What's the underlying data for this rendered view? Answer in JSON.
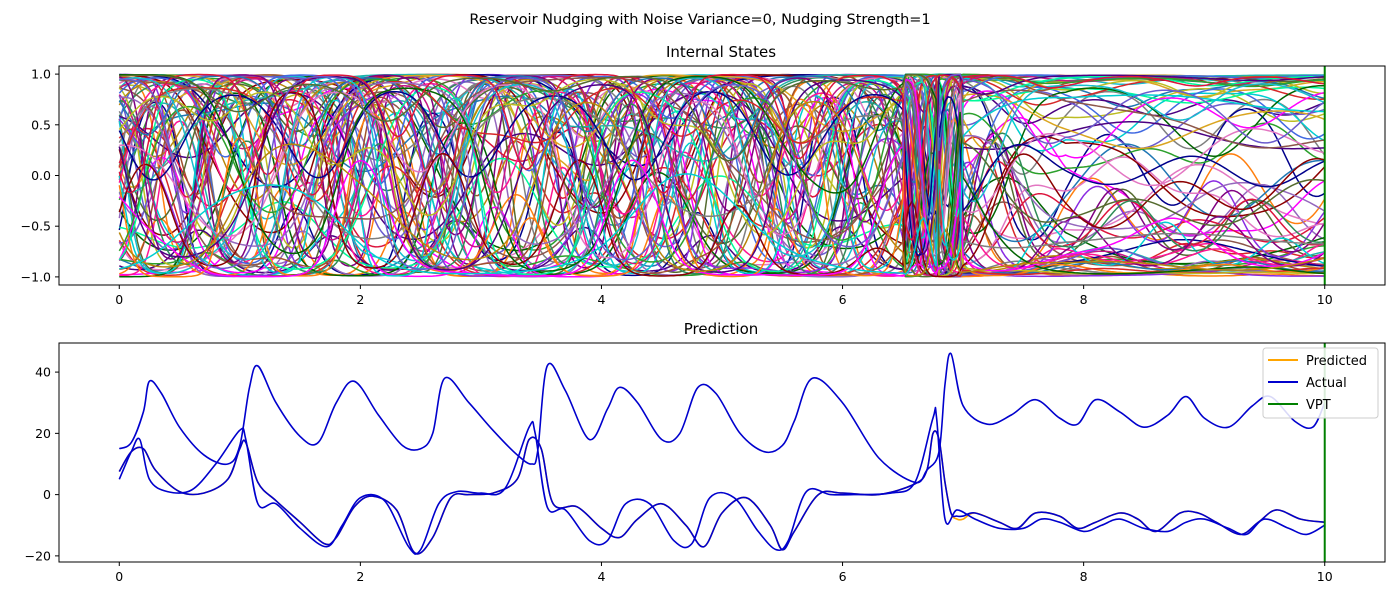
{
  "figure": {
    "suptitle": "Reservoir Nudging with Noise Variance=0, Nudging Strength=1"
  },
  "chart_data": [
    {
      "type": "line",
      "title": "Internal States",
      "xlim": [
        -0.5,
        10.5
      ],
      "ylim": [
        -1.08,
        1.08
      ],
      "xticks": [
        0,
        2,
        4,
        6,
        8,
        10
      ],
      "yticks": [
        -1.0,
        -0.5,
        0.0,
        0.5,
        1.0
      ],
      "ytick_labels": [
        "−1.0",
        "−0.5",
        "0.0",
        "0.5",
        "1.0"
      ],
      "grid": false,
      "vline_x": 10,
      "vline_color": "#008000",
      "series_count": 80,
      "note_series": "80 internal reservoir state trajectories, each bounded in [-1, 1]; multicolored, unlabeled",
      "palette": [
        "#1f77b4",
        "#ff7f0e",
        "#2ca02c",
        "#d62728",
        "#9467bd",
        "#8c564b",
        "#e377c2",
        "#7f7f7f",
        "#bcbd22",
        "#17becf",
        "#00008b",
        "#8b0000",
        "#006400",
        "#ff00ff",
        "#4b0082",
        "#b8860b",
        "#00ced1",
        "#dc143c",
        "#6a5acd",
        "#556b2f",
        "#ff1493",
        "#2e8b57",
        "#8a2be2",
        "#a0522d",
        "#20b2aa",
        "#c71585",
        "#4169e1",
        "#daa520",
        "#00fa9a",
        "#800080"
      ]
    },
    {
      "type": "line",
      "title": "Prediction",
      "xlim": [
        -0.5,
        10.5
      ],
      "ylim": [
        -22,
        49.5
      ],
      "xticks": [
        0,
        2,
        4,
        6,
        8,
        10
      ],
      "yticks": [
        -20,
        0,
        20,
        40
      ],
      "ytick_labels": [
        "−20",
        "0",
        "20",
        "40"
      ],
      "grid": false,
      "legend_position": "top-right",
      "series": [
        {
          "name": "Predicted",
          "color": "#ffa500",
          "component": "x",
          "x": [
            0,
            0.1,
            0.2,
            0.3,
            0.5,
            0.7,
            0.9,
            1.0,
            1.05,
            1.15,
            1.3,
            1.5,
            1.7,
            1.8,
            1.95,
            2.1,
            2.3,
            2.45,
            2.6,
            2.75,
            2.9,
            3.1,
            3.3,
            3.4,
            3.5,
            3.6,
            3.8,
            4.0,
            4.15,
            4.3,
            4.5,
            4.7,
            4.85,
            5.0,
            5.2,
            5.4,
            5.5,
            5.6,
            5.8,
            6.0,
            6.3,
            6.6,
            6.7,
            6.75,
            6.8,
            6.85,
            6.9,
            6.95,
            7.0,
            7.1,
            7.3,
            7.45,
            7.6,
            7.8,
            7.95,
            8.1,
            8.3,
            8.45,
            8.6,
            8.8,
            8.95,
            9.1,
            9.3,
            9.45,
            9.6,
            9.8,
            10.0
          ],
          "values": [
            7.5,
            14,
            15,
            8,
            1,
            0.5,
            5,
            15,
            17,
            4,
            -2,
            -9,
            -16,
            -14,
            -4,
            -0.5,
            -5,
            -19,
            -14,
            -1,
            0,
            0.5,
            5,
            18,
            15,
            -3,
            -4,
            -11,
            -14,
            -8,
            -3,
            -10,
            -17,
            -6,
            -1,
            -10,
            -18,
            -12,
            0,
            0.5,
            0,
            3.5,
            8,
            20,
            18,
            4,
            -6,
            -8,
            -8,
            -6,
            -9,
            -11,
            -6,
            -7,
            -11,
            -9,
            -6,
            -8,
            -12,
            -6,
            -6,
            -9,
            -13,
            -9,
            -5,
            -8,
            -9
          ]
        },
        {
          "name": "Actual",
          "color": "#0000cd",
          "components": [
            {
              "component": "x",
              "x": [
                0,
                0.1,
                0.2,
                0.3,
                0.5,
                0.7,
                0.9,
                1.0,
                1.05,
                1.15,
                1.3,
                1.5,
                1.7,
                1.8,
                1.95,
                2.1,
                2.3,
                2.45,
                2.6,
                2.75,
                2.9,
                3.1,
                3.3,
                3.4,
                3.5,
                3.6,
                3.8,
                4.0,
                4.15,
                4.3,
                4.5,
                4.7,
                4.85,
                5.0,
                5.2,
                5.4,
                5.5,
                5.6,
                5.8,
                6.0,
                6.3,
                6.6,
                6.7,
                6.75,
                6.8,
                6.85,
                6.9,
                6.95,
                7.0,
                7.1,
                7.3,
                7.45,
                7.6,
                7.8,
                7.95,
                8.1,
                8.3,
                8.45,
                8.6,
                8.8,
                8.95,
                9.1,
                9.3,
                9.45,
                9.6,
                9.8,
                10.0
              ],
              "values": [
                7.5,
                14,
                15,
                8,
                1,
                0.5,
                5,
                15,
                17,
                4,
                -2,
                -9,
                -16,
                -14,
                -4,
                -0.5,
                -5,
                -19,
                -14,
                -1,
                0,
                0.5,
                5,
                18,
                15,
                -3,
                -4,
                -11,
                -14,
                -8,
                -3,
                -10,
                -17,
                -6,
                -1,
                -10,
                -18,
                -12,
                0,
                0.5,
                0,
                3.5,
                8,
                20,
                18,
                4,
                -6,
                -7,
                -7,
                -6,
                -9,
                -11,
                -6,
                -7,
                -11,
                -9,
                -6,
                -8,
                -12,
                -6,
                -6,
                -9,
                -13,
                -9,
                -5,
                -8,
                -9
              ]
            },
            {
              "component": "y",
              "x": [
                0,
                0.1,
                0.17,
                0.25,
                0.4,
                0.6,
                0.8,
                1.0,
                1.05,
                1.15,
                1.3,
                1.5,
                1.72,
                1.85,
                2.0,
                2.2,
                2.4,
                2.5,
                2.65,
                2.8,
                3.0,
                3.2,
                3.4,
                3.45,
                3.55,
                3.7,
                3.9,
                4.05,
                4.2,
                4.4,
                4.6,
                4.75,
                4.9,
                5.1,
                5.3,
                5.45,
                5.55,
                5.7,
                5.9,
                6.1,
                6.4,
                6.6,
                6.75,
                6.78,
                6.85,
                6.95,
                7.1,
                7.3,
                7.5,
                7.65,
                7.8,
                8.0,
                8.15,
                8.3,
                8.5,
                8.7,
                8.85,
                9.0,
                9.2,
                9.35,
                9.5,
                9.7,
                9.85,
                10.0
              ],
              "values": [
                5,
                14,
                18,
                5,
                1,
                1.5,
                10,
                21,
                18,
                -3,
                -3,
                -11,
                -17,
                -10,
                -1,
                -2,
                -17,
                -18,
                -3,
                1,
                0.5,
                2,
                22,
                20,
                -4,
                -5,
                -15,
                -15,
                -3,
                -3,
                -15,
                -16,
                -1,
                -1,
                -12,
                -18,
                -15,
                1,
                0,
                0,
                0.5,
                4,
                25,
                25,
                -8,
                -5,
                -8,
                -11,
                -11,
                -8,
                -9,
                -12,
                -10,
                -8,
                -11,
                -12,
                -9,
                -8,
                -11,
                -13,
                -8,
                -11,
                -13,
                -10
              ]
            },
            {
              "component": "z",
              "x": [
                0,
                0.1,
                0.2,
                0.25,
                0.35,
                0.5,
                0.7,
                0.9,
                1.0,
                1.08,
                1.15,
                1.3,
                1.5,
                1.65,
                1.8,
                1.95,
                2.15,
                2.35,
                2.5,
                2.6,
                2.7,
                2.9,
                3.1,
                3.3,
                3.42,
                3.47,
                3.55,
                3.7,
                3.9,
                4.05,
                4.15,
                4.3,
                4.5,
                4.65,
                4.8,
                4.95,
                5.15,
                5.35,
                5.5,
                5.6,
                5.75,
                6.0,
                6.3,
                6.6,
                6.7,
                6.8,
                6.85,
                6.9,
                7.0,
                7.2,
                7.4,
                7.6,
                7.8,
                7.95,
                8.1,
                8.3,
                8.5,
                8.7,
                8.85,
                9.0,
                9.2,
                9.4,
                9.55,
                9.75,
                9.9,
                10.0
              ],
              "values": [
                15,
                17,
                27,
                37,
                33,
                22,
                13,
                10,
                16,
                35,
                42,
                30,
                19,
                17,
                30,
                37,
                26,
                16,
                15,
                20,
                38,
                30,
                21,
                13,
                10,
                14,
                42,
                34,
                18,
                28,
                35,
                30,
                18,
                20,
                35,
                33,
                20,
                14,
                16,
                24,
                38,
                30,
                12,
                4,
                8,
                14,
                36,
                46,
                29,
                23,
                26,
                31,
                25,
                23,
                31,
                27,
                22,
                26,
                32,
                25,
                22,
                29,
                32,
                24,
                22,
                30
              ]
            }
          ]
        },
        {
          "name": "VPT",
          "color": "#008000",
          "vline_x": 10
        }
      ]
    }
  ]
}
